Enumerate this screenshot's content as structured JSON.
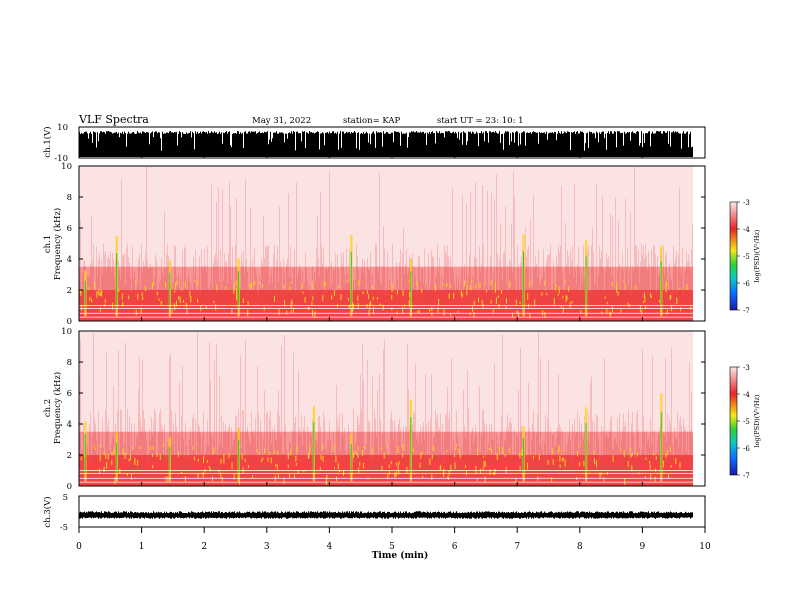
{
  "header": {
    "title": "VLF Spectra",
    "date": "May 31, 2022",
    "station": "station= KAP",
    "start": "start UT = 23: 10: 1"
  },
  "colors": {
    "background": "#ffffff",
    "axis": "#000000",
    "trace": "#000000",
    "spectrogram_base": "#e8262b",
    "spectrogram_high": "#ffd21a",
    "spectrogram_peak": "#2bc83a"
  },
  "chart_data": [
    {
      "type": "line",
      "name": "ch1-waveform",
      "ylabel": "ch.1(V)",
      "xlim": [
        0,
        10
      ],
      "ylim": [
        -10,
        10
      ],
      "yticks": [
        10,
        -10
      ],
      "note_visible": "saturated trace filling most of the range"
    },
    {
      "type": "heatmap",
      "name": "ch1-spectrogram",
      "ylabel": "ch.1\nFrequency (kHz)",
      "xlim": [
        0,
        10
      ],
      "ylim": [
        0,
        10
      ],
      "yticks": [
        0,
        2,
        4,
        6,
        8,
        10
      ],
      "colorbar": {
        "label": "log(PSD)(V²/Hz)",
        "range": [
          -7,
          -3
        ],
        "ticks": [
          "-3",
          "-4",
          "-5",
          "-6",
          "-7"
        ]
      },
      "dominant_band_khz": [
        0.3,
        2.0
      ],
      "bursts_min": [
        0.1,
        0.6,
        1.45,
        2.55,
        4.35,
        5.3,
        7.1,
        8.1,
        9.3
      ]
    },
    {
      "type": "heatmap",
      "name": "ch2-spectrogram",
      "ylabel": "ch.2\nFrequency (kHz)",
      "xlim": [
        0,
        10
      ],
      "ylim": [
        0,
        10
      ],
      "yticks": [
        0,
        2,
        4,
        6,
        8,
        10
      ],
      "colorbar": {
        "label": "log(PSD)(V²/Hz)",
        "range": [
          -7,
          -3
        ],
        "ticks": [
          "-3",
          "-4",
          "-5",
          "-6",
          "-7"
        ]
      },
      "dominant_band_khz": [
        0.3,
        2.0
      ],
      "bursts_min": [
        0.1,
        0.6,
        1.45,
        2.55,
        3.75,
        4.35,
        5.3,
        7.1,
        8.1,
        9.3
      ]
    },
    {
      "type": "line",
      "name": "ch3-waveform",
      "ylabel": "ch.3(V)",
      "xlim": [
        0,
        10
      ],
      "ylim": [
        -5,
        5
      ],
      "yticks": [
        5,
        -5
      ],
      "level": -1.2
    }
  ],
  "xaxis": {
    "label": "Time (min)",
    "ticks": [
      "0",
      "1",
      "2",
      "3",
      "4",
      "5",
      "6",
      "7",
      "8",
      "9",
      "10"
    ]
  }
}
